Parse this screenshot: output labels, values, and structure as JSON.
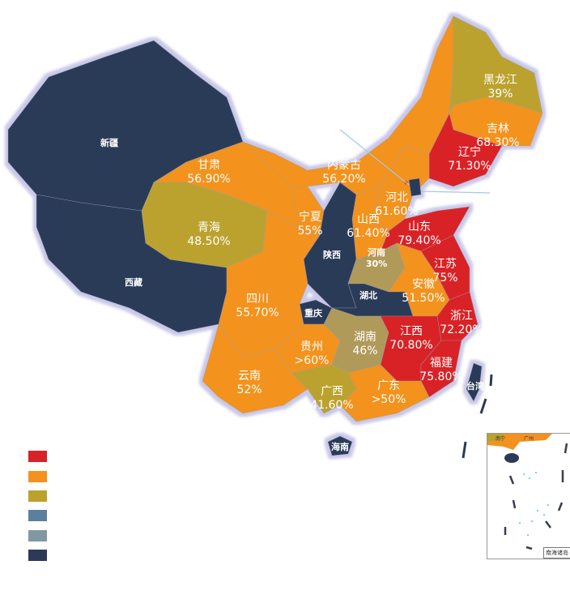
{
  "colors": {
    "red": "#d92128",
    "orange": "#f3921f",
    "olive": "#bba22d",
    "steel_blue": "#5d7f9e",
    "gray_blue": "#8198a4",
    "navy": "#2c3a58",
    "khaki": "#b09a5a",
    "border_glow": "#c9c8e8"
  },
  "provinces": {
    "xinjiang": {
      "name": "新疆",
      "value": "",
      "color": "navy"
    },
    "xizang": {
      "name": "西藏",
      "value": "",
      "color": "navy"
    },
    "qinghai": {
      "name": "青海",
      "value": "48.50%",
      "color": "olive"
    },
    "gansu": {
      "name": "甘肃",
      "value": "56.90%",
      "color": "orange"
    },
    "neimenggu": {
      "name": "内蒙古",
      "value": "56.20%",
      "color": "orange"
    },
    "heilongjiang": {
      "name": "黑龙江",
      "value": "39%",
      "color": "olive"
    },
    "jilin": {
      "name": "吉林",
      "value": "68.30%",
      "color": "orange"
    },
    "liaoning": {
      "name": "辽宁",
      "value": "71.30%",
      "color": "red"
    },
    "hebei": {
      "name": "河北",
      "value": "61.60%",
      "color": "orange"
    },
    "shanxi": {
      "name": "山西",
      "value": "61.40%",
      "color": "orange"
    },
    "ningxia": {
      "name": "宁夏",
      "value": "55%",
      "color": "orange"
    },
    "shaanxi": {
      "name": "陕西",
      "value": "",
      "color": "navy"
    },
    "henan": {
      "name": "河南",
      "value": "30%",
      "color": "khaki"
    },
    "shandong": {
      "name": "山东",
      "value": "79.40%",
      "color": "red"
    },
    "jiangsu": {
      "name": "江苏",
      "value": "75%",
      "color": "red"
    },
    "anhui": {
      "name": "安徽",
      "value": "51.50%",
      "color": "orange"
    },
    "hubei": {
      "name": "湖北",
      "value": "",
      "color": "navy"
    },
    "chongqing": {
      "name": "重庆",
      "value": "",
      "color": "navy"
    },
    "sichuan": {
      "name": "四川",
      "value": "55.70%",
      "color": "orange"
    },
    "guizhou": {
      "name": "贵州",
      "value": ">60%",
      "color": "orange"
    },
    "yunnan": {
      "name": "云南",
      "value": "52%",
      "color": "orange"
    },
    "hunan": {
      "name": "湖南",
      "value": "46%",
      "color": "khaki"
    },
    "jiangxi": {
      "name": "江西",
      "value": "70.80%",
      "color": "red"
    },
    "zhejiang": {
      "name": "浙江",
      "value": "72.20%",
      "color": "red"
    },
    "fujian": {
      "name": "福建",
      "value": "75.80%",
      "color": "red"
    },
    "guangxi": {
      "name": "广西",
      "value": "41.60%",
      "color": "olive"
    },
    "guangdong": {
      "name": "广东",
      "value": ">50%",
      "color": "orange"
    },
    "hainan": {
      "name": "海南",
      "value": "",
      "color": "navy"
    },
    "taiwan": {
      "name": "台湾",
      "value": "",
      "color": "navy"
    },
    "beijing": {
      "name": "",
      "value": "",
      "color": "navy"
    }
  },
  "legend": [
    {
      "color": "red"
    },
    {
      "color": "orange"
    },
    {
      "color": "olive"
    },
    {
      "color": "steel_blue"
    },
    {
      "color": "gray_blue"
    },
    {
      "color": "navy"
    }
  ],
  "inset": {
    "title": "南海诸岛",
    "cities": [
      "南宁",
      "广州"
    ]
  }
}
